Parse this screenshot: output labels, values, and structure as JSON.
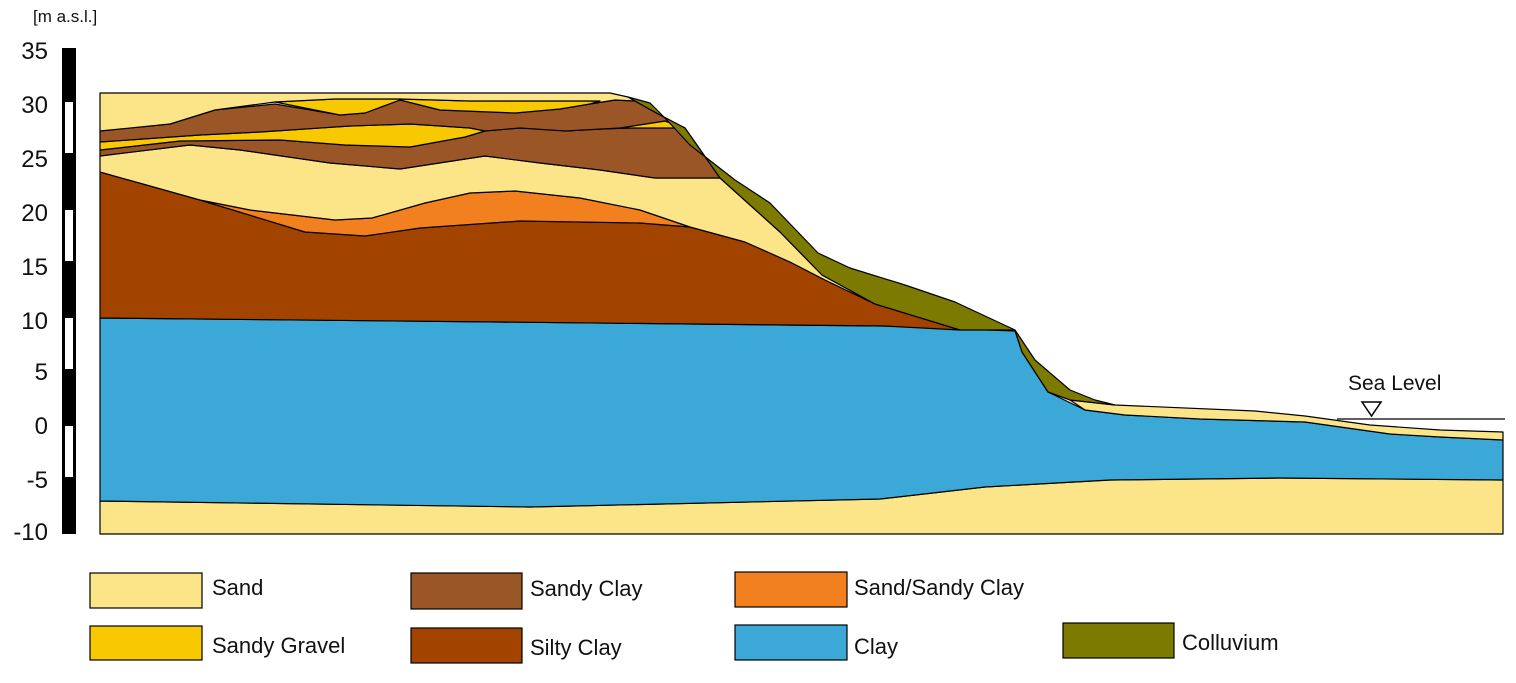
{
  "diagram": {
    "unit_label": "[m a.s.l.]",
    "y_ticks": [
      "35",
      "30",
      "25",
      "20",
      "15",
      "10",
      "5",
      "0",
      "-5",
      "-10"
    ],
    "sea_level_label": "Sea Level",
    "legend": [
      {
        "key": "sand",
        "label": "Sand",
        "color": "#FBE588"
      },
      {
        "key": "sandy_clay",
        "label": "Sandy Clay",
        "color": "#9B5628"
      },
      {
        "key": "sand_sandy_clay",
        "label": "Sand/Sandy Clay",
        "color": "#F2801E"
      },
      {
        "key": "sandy_gravel",
        "label": "Sandy Gravel",
        "color": "#F8C800"
      },
      {
        "key": "silty_clay",
        "label": "Silty Clay",
        "color": "#A24400"
      },
      {
        "key": "clay",
        "label": "Clay",
        "color": "#3BA8D8"
      },
      {
        "key": "colluvium",
        "label": "Colluvium",
        "color": "#7C7A00"
      }
    ]
  }
}
